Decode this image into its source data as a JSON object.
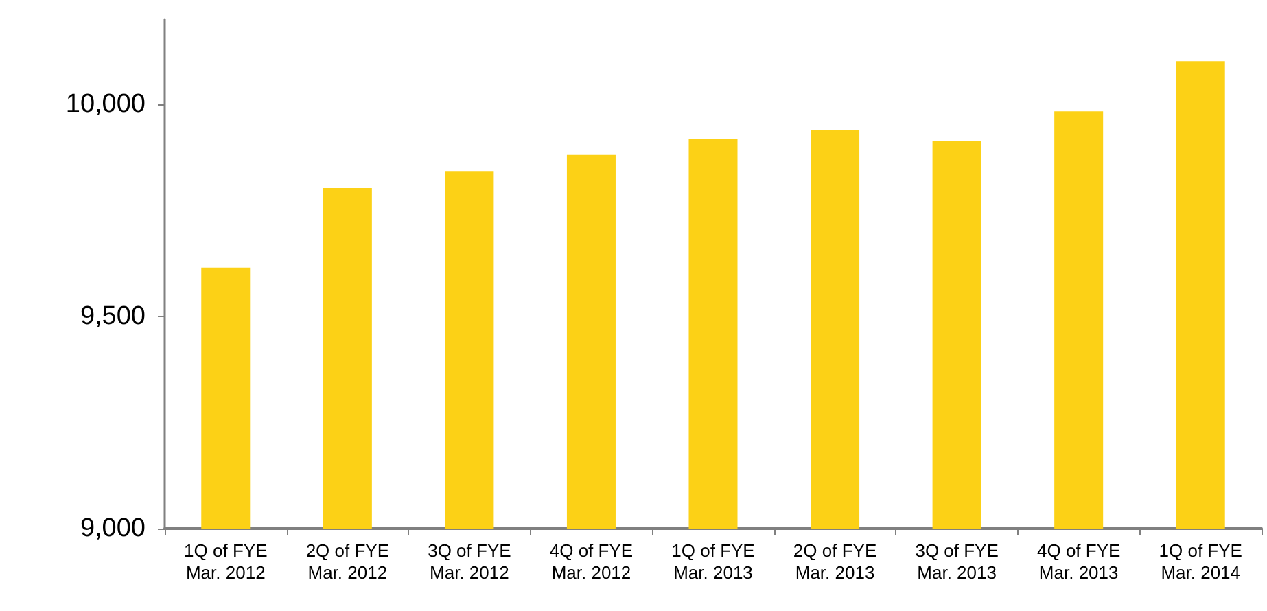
{
  "chart_data": {
    "type": "bar",
    "categories": [
      "1Q of FYE\nMar. 2012",
      "2Q of FYE\nMar. 2012",
      "3Q of FYE\nMar. 2012",
      "4Q of FYE\nMar. 2012",
      "1Q of FYE\nMar. 2013",
      "2Q of FYE\nMar. 2013",
      "3Q of FYE\nMar. 2013",
      "4Q of FYE\nMar. 2013",
      "1Q of FYE\nMar. 2014"
    ],
    "values": [
      9615,
      9802,
      9842,
      9880,
      9918,
      9939,
      9912,
      9983,
      10101
    ],
    "color": "#fcd116",
    "ylim": [
      9000,
      10200
    ],
    "yticks": [
      {
        "value": 9000,
        "label": "9,000"
      },
      {
        "value": 9500,
        "label": "9,500"
      },
      {
        "value": 10000,
        "label": "10,000"
      }
    ],
    "grid": false
  }
}
